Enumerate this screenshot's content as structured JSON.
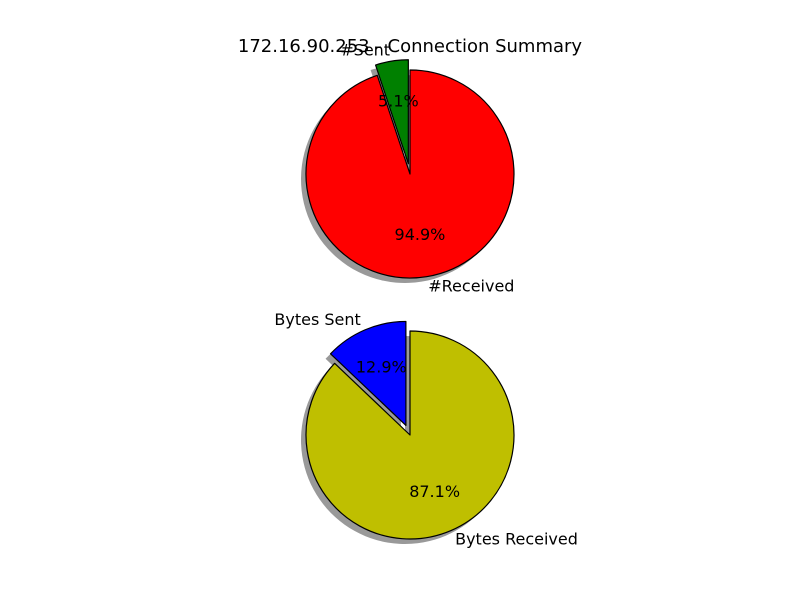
{
  "title": "172.16.90.253 - Connection Summary",
  "chart_data": [
    {
      "type": "pie",
      "title": "",
      "labels": [
        "#Sent",
        "#Received"
      ],
      "values": [
        5.1,
        94.9
      ],
      "percent_labels": [
        "5.1%",
        "94.9%"
      ],
      "colors": [
        "#008000",
        "#ff0000"
      ],
      "explode": [
        0.1,
        0
      ],
      "shadow": true,
      "start_angle_deg": 90
    },
    {
      "type": "pie",
      "title": "",
      "labels": [
        "Bytes Sent",
        "Bytes Received"
      ],
      "values": [
        12.9,
        87.1
      ],
      "percent_labels": [
        "12.9%",
        "87.1%"
      ],
      "colors": [
        "#0000ff",
        "#bfbf00"
      ],
      "explode": [
        0.1,
        0
      ],
      "shadow": true,
      "start_angle_deg": 90
    }
  ]
}
